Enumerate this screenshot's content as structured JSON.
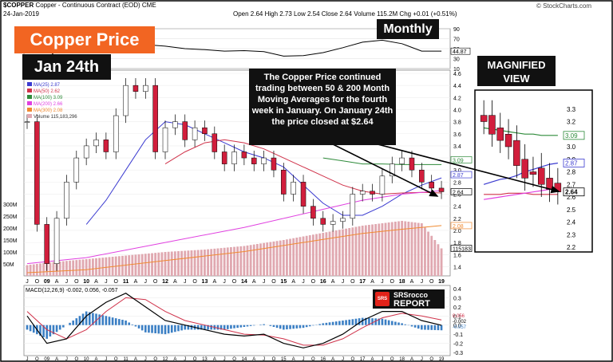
{
  "header": {
    "symbol": "$COPPER",
    "name": "Copper - Continuous Contract (EOD)",
    "exchange": "CME",
    "date": "24-Jan-2019",
    "ohlc": "Open 2.64  High 2.73  Low 2.54  Close 2.64  Volume 115.2M  Chg +0.01 (+0.51%)",
    "brand": "© StockCharts.com"
  },
  "overlays": {
    "title": "Copper Price",
    "date": "Jan 24th",
    "period": "Monthly",
    "note": "The Copper Price continued trading between 50 & 200 Month Moving Averages for the fourth week in January.  On January 24th the price closed at $2.64",
    "magnified_title": "MAGNIFIED VIEW",
    "logo_line1": "SRSrocco",
    "logo_line2": "REPORT",
    "logo_badge": "SRS"
  },
  "colors": {
    "ma25": "#3b3bd0",
    "ma50": "#d0324a",
    "ma100": "#2e8b3a",
    "ma200": "#e040e0",
    "ma300": "#f08a30",
    "candle_up": "#ffffff",
    "candle_down": "#d11e3c",
    "volume": "#e0a8b0",
    "accent_orange": "#f26522",
    "macd_line": "#000000",
    "macd_signal": "#d0324a",
    "macd_hist": "#3b7fc4"
  },
  "chart_data": [
    {
      "type": "line",
      "panel": "RSI",
      "title": "RSI(14) 44.87",
      "ylim": [
        10,
        90
      ],
      "ticks": [
        "90",
        "70",
        "50",
        "30",
        "10"
      ],
      "last_value_label": "44.87",
      "x": [
        2008.5,
        2009,
        2009.5,
        2010,
        2010.5,
        2011,
        2011.5,
        2012,
        2012.5,
        2013,
        2013.5,
        2014,
        2014.5,
        2015,
        2015.5,
        2016,
        2016.5,
        2017,
        2017.5,
        2018,
        2018.5,
        2019
      ],
      "values": [
        35,
        28,
        68,
        62,
        66,
        72,
        58,
        55,
        50,
        48,
        45,
        46,
        44,
        35,
        36,
        42,
        52,
        63,
        67,
        60,
        45,
        45
      ]
    },
    {
      "type": "candlestick",
      "panel": "price",
      "title": "$COPPER (Monthly) 2.64",
      "ylim": [
        1.3,
        4.6
      ],
      "y_ticks": [
        "1.4",
        "1.6",
        "1.8",
        "2.0",
        "2.2",
        "2.4",
        "2.6",
        "2.8",
        "3.0",
        "3.2",
        "3.4",
        "3.6",
        "3.8",
        "4.0",
        "4.2",
        "4.4",
        "4.6"
      ],
      "volume_ticks": [
        "50M",
        "100M",
        "150M",
        "200M",
        "250M",
        "300M"
      ],
      "x_labels": [
        "J",
        "O",
        "09",
        "A",
        "J",
        "O",
        "10",
        "A",
        "J",
        "O",
        "11",
        "A",
        "J",
        "O",
        "12",
        "A",
        "J",
        "O",
        "13",
        "A",
        "J",
        "O",
        "14",
        "A",
        "J",
        "O",
        "15",
        "A",
        "J",
        "O",
        "16",
        "A",
        "J",
        "O",
        "17",
        "A",
        "J",
        "O",
        "18",
        "A",
        "J",
        "O",
        "19"
      ],
      "legend": [
        "MA(25) 2.87",
        "MA(50) 2.62",
        "MA(100) 3.09",
        "MA(200) 2.66",
        "MA(300) 2.08",
        "Volume 115,183,296"
      ],
      "series": [
        {
          "name": "Price",
          "x": [
            2008.5,
            2008.75,
            2009,
            2009.25,
            2009.5,
            2009.75,
            2010,
            2010.25,
            2010.5,
            2010.75,
            2011,
            2011.25,
            2011.5,
            2011.75,
            2012,
            2012.25,
            2012.5,
            2012.75,
            2013,
            2013.25,
            2013.5,
            2013.75,
            2014,
            2014.25,
            2014.5,
            2014.75,
            2015,
            2015.25,
            2015.5,
            2015.75,
            2016,
            2016.25,
            2016.5,
            2016.75,
            2017,
            2017.25,
            2017.5,
            2017.75,
            2018,
            2018.25,
            2018.5,
            2018.75,
            2019
          ],
          "values": [
            3.8,
            2.1,
            1.45,
            2.2,
            2.8,
            3.2,
            3.4,
            3.5,
            3.3,
            3.9,
            4.4,
            4.3,
            4.4,
            3.3,
            3.7,
            3.8,
            3.5,
            3.7,
            3.6,
            3.3,
            3.1,
            3.3,
            3.2,
            3.1,
            3.2,
            3.0,
            2.6,
            2.8,
            2.4,
            2.2,
            2.1,
            2.15,
            2.2,
            2.6,
            2.65,
            2.6,
            2.9,
            3.1,
            3.2,
            3.0,
            2.8,
            2.7,
            2.64
          ]
        },
        {
          "name": "MA(25)",
          "x": [
            2010,
            2010.5,
            2011,
            2011.5,
            2012,
            2012.5,
            2013,
            2013.5,
            2014,
            2014.5,
            2015,
            2015.5,
            2016,
            2016.5,
            2017,
            2017.5,
            2018,
            2018.5,
            2019
          ],
          "values": [
            2.1,
            2.5,
            3.0,
            3.5,
            3.8,
            3.75,
            3.6,
            3.45,
            3.3,
            3.2,
            3.05,
            2.75,
            2.45,
            2.25,
            2.25,
            2.4,
            2.6,
            2.75,
            2.87
          ]
        },
        {
          "name": "MA(50)",
          "x": [
            2012,
            2012.5,
            2013,
            2013.5,
            2014,
            2014.5,
            2015,
            2015.5,
            2016,
            2016.5,
            2017,
            2017.5,
            2018,
            2018.5,
            2019
          ],
          "values": [
            3.1,
            3.3,
            3.45,
            3.5,
            3.45,
            3.35,
            3.2,
            3.05,
            2.9,
            2.75,
            2.65,
            2.6,
            2.62,
            2.63,
            2.62
          ]
        },
        {
          "name": "MA(100)",
          "x": [
            2016,
            2016.5,
            2017,
            2017.5,
            2018,
            2018.5,
            2019
          ],
          "values": [
            3.2,
            3.15,
            3.1,
            3.1,
            3.09,
            3.09,
            3.09
          ]
        },
        {
          "name": "MA(200)",
          "x": [
            2008.5,
            2010,
            2012,
            2014,
            2016,
            2017,
            2018,
            2019
          ],
          "values": [
            1.45,
            1.55,
            1.8,
            2.05,
            2.35,
            2.5,
            2.6,
            2.66
          ]
        },
        {
          "name": "MA(300)",
          "x": [
            2008.5,
            2010,
            2012,
            2014,
            2016,
            2017,
            2018,
            2019
          ],
          "values": [
            1.3,
            1.35,
            1.5,
            1.65,
            1.85,
            1.95,
            2.02,
            2.08
          ]
        },
        {
          "name": "Volume (M)",
          "x": [
            2008.5,
            2009,
            2010,
            2011,
            2012,
            2013,
            2014,
            2015,
            2016,
            2017,
            2018,
            2018.5,
            2019
          ],
          "values": [
            45,
            55,
            70,
            85,
            100,
            110,
            125,
            150,
            180,
            210,
            230,
            220,
            115
          ]
        }
      ],
      "last_value_labels": [
        "3.09",
        "2.87",
        "2.64",
        "2.08",
        "115183"
      ]
    },
    {
      "type": "line",
      "panel": "MACD",
      "title": "MACD(12,26,9) -0.002, 0.056, -0.057",
      "ylim": [
        -0.3,
        0.4
      ],
      "y_ticks": [
        "0.4",
        "0.3",
        "0.2",
        "0.1",
        "0.0",
        "-0.1",
        "-0.2",
        "-0.3"
      ],
      "last_value_labels": [
        "0.056",
        "-0.002",
        "-0.057"
      ],
      "x": [
        2008.5,
        2009,
        2009.5,
        2010,
        2010.5,
        2011,
        2011.5,
        2012,
        2012.5,
        2013,
        2013.5,
        2014,
        2014.5,
        2015,
        2015.5,
        2016,
        2016.5,
        2017,
        2017.5,
        2018,
        2018.5,
        2019
      ],
      "series": [
        {
          "name": "MACD",
          "values": [
            0.1,
            -0.2,
            -0.15,
            0.1,
            0.25,
            0.35,
            0.2,
            0.05,
            0.0,
            -0.05,
            -0.1,
            -0.12,
            -0.1,
            -0.2,
            -0.25,
            -0.2,
            -0.1,
            0.05,
            0.15,
            0.15,
            0.05,
            -0.002
          ]
        },
        {
          "name": "Signal",
          "values": [
            0.15,
            -0.05,
            -0.15,
            -0.05,
            0.15,
            0.3,
            0.28,
            0.15,
            0.05,
            0.0,
            -0.05,
            -0.1,
            -0.11,
            -0.15,
            -0.22,
            -0.22,
            -0.15,
            -0.03,
            0.08,
            0.13,
            0.1,
            0.056
          ]
        },
        {
          "name": "Histogram",
          "values": [
            -0.05,
            -0.15,
            0.0,
            0.15,
            0.1,
            0.05,
            -0.08,
            -0.1,
            -0.05,
            -0.05,
            -0.05,
            -0.02,
            0.01,
            -0.05,
            -0.03,
            0.02,
            0.05,
            0.08,
            0.07,
            0.02,
            -0.05,
            -0.057
          ]
        }
      ]
    },
    {
      "type": "candlestick",
      "panel": "magnified",
      "title": "MAGNIFIED VIEW",
      "ylim": [
        2.2,
        3.4
      ],
      "y_ticks": [
        "2.2",
        "2.3",
        "2.4",
        "2.5",
        "2.6",
        "2.7",
        "2.8",
        "2.9",
        "3.0",
        "3.1",
        "3.2",
        "3.3"
      ],
      "last_value_labels": [
        "3.09",
        "2.87",
        "2.64"
      ],
      "x": [
        1,
        2,
        3,
        4,
        5,
        6,
        7,
        8,
        9,
        10
      ],
      "series": [
        {
          "name": "Price",
          "values": [
            3.2,
            3.1,
            3.05,
            3.0,
            2.85,
            2.75,
            2.78,
            2.7,
            2.66,
            2.64
          ]
        },
        {
          "name": "MA(100)",
          "values": [
            3.15,
            3.14,
            3.13,
            3.12,
            3.11,
            3.1,
            3.1,
            3.09,
            3.09,
            3.09
          ]
        },
        {
          "name": "MA(25)",
          "values": [
            2.7,
            2.72,
            2.74,
            2.75,
            2.77,
            2.8,
            2.82,
            2.84,
            2.86,
            2.87
          ]
        },
        {
          "name": "MA(50)",
          "values": [
            2.62,
            2.62,
            2.62,
            2.63,
            2.63,
            2.63,
            2.62,
            2.62,
            2.62,
            2.62
          ]
        },
        {
          "name": "MA(200)",
          "values": [
            2.58,
            2.59,
            2.6,
            2.61,
            2.62,
            2.63,
            2.64,
            2.65,
            2.66,
            2.66
          ]
        }
      ]
    }
  ]
}
